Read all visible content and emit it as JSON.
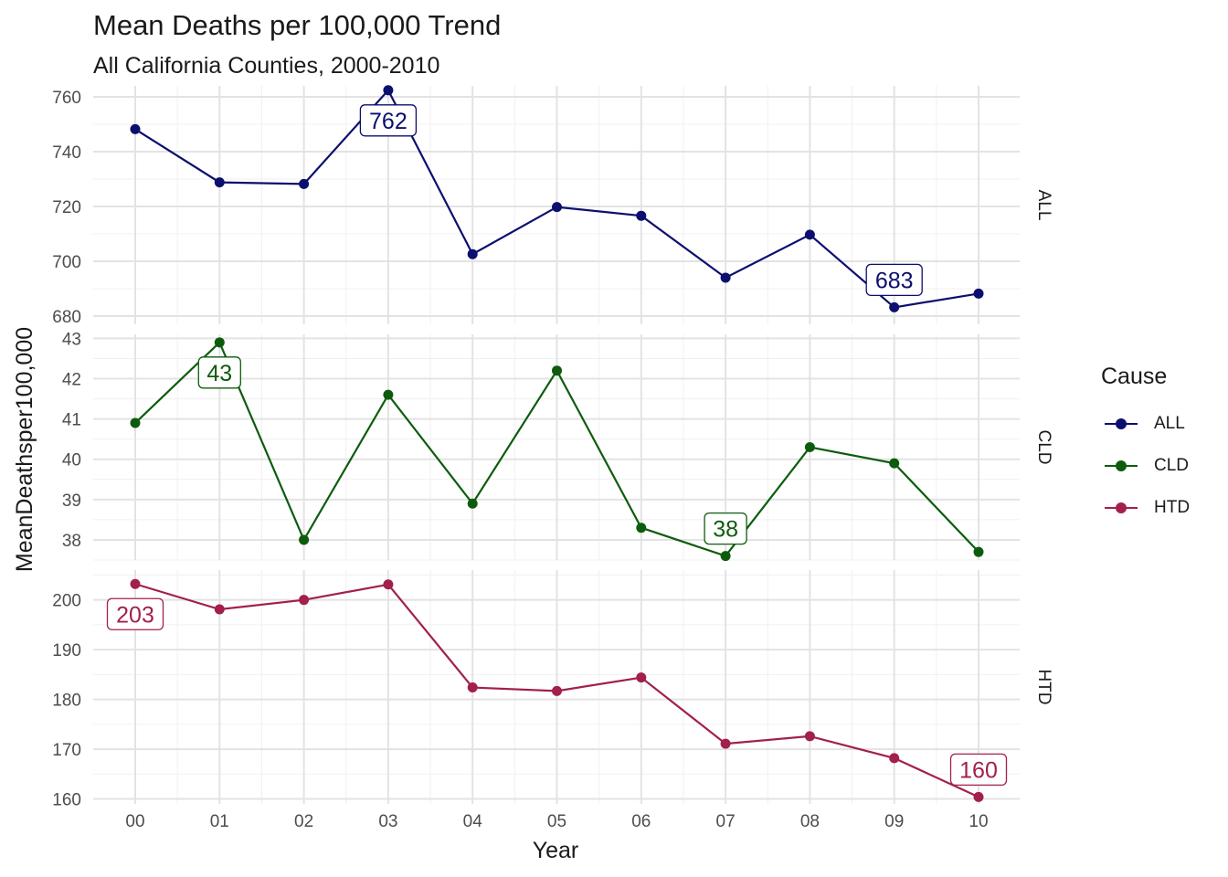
{
  "chart_data": {
    "type": "line",
    "title": "Mean Deaths per 100,000 Trend",
    "subtitle": "All California Counties, 2000-2010",
    "xlabel": "Year",
    "ylabel": "MeanDeathsper100,000",
    "categories": [
      "00",
      "01",
      "02",
      "03",
      "04",
      "05",
      "06",
      "07",
      "08",
      "09",
      "10"
    ],
    "legend": {
      "title": "Cause",
      "position": "right"
    },
    "grid": true,
    "facets": [
      {
        "name": "ALL",
        "color": "#0c0f6e",
        "ylim": [
          677,
          764
        ],
        "yticks": [
          680,
          700,
          720,
          740,
          760
        ],
        "values": [
          748.2,
          728.8,
          728.2,
          762.4,
          702.6,
          719.8,
          716.6,
          694.0,
          709.7,
          683.2,
          688.2
        ],
        "labels": [
          {
            "index": 3,
            "text": "762"
          },
          {
            "index": 9,
            "text": "683"
          }
        ]
      },
      {
        "name": "CLD",
        "color": "#0d5c0d",
        "ylim": [
          37.5,
          43.1
        ],
        "yticks": [
          38,
          39,
          40,
          41,
          42,
          43
        ],
        "values": [
          40.9,
          42.9,
          38.0,
          41.6,
          38.9,
          42.2,
          38.3,
          37.6,
          40.3,
          39.9,
          37.7
        ],
        "labels": [
          {
            "index": 1,
            "text": "43"
          },
          {
            "index": 7,
            "text": "38"
          }
        ]
      },
      {
        "name": "HTD",
        "color": "#a21f4e",
        "ylim": [
          159,
          206
        ],
        "yticks": [
          160,
          170,
          180,
          190,
          200
        ],
        "values": [
          203.2,
          198.1,
          200.0,
          203.1,
          182.4,
          181.7,
          184.4,
          171.1,
          172.6,
          168.2,
          160.4
        ],
        "labels": [
          {
            "index": 0,
            "text": "203"
          },
          {
            "index": 10,
            "text": "160"
          }
        ]
      }
    ]
  }
}
